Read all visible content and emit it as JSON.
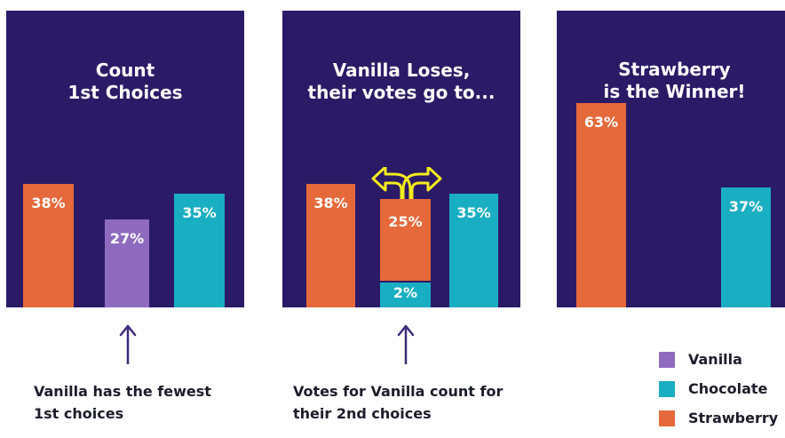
{
  "colors": {
    "background": "#2b1a66",
    "vanilla": "#8e6bbf",
    "chocolate": "#1aaec2",
    "strawberry": "#e5693a",
    "arrow": "#f4ec1d",
    "pointer": "#3d2b7a"
  },
  "chart_data": [
    {
      "type": "bar",
      "title": "Count\n1st Choices",
      "ylim": [
        0,
        70
      ],
      "bars": [
        {
          "series": "Strawberry",
          "value": 38,
          "label": "38%"
        },
        {
          "series": "Vanilla",
          "value": 27,
          "label": "27%"
        },
        {
          "series": "Chocolate",
          "value": 35,
          "label": "35%"
        }
      ]
    },
    {
      "type": "bar",
      "title": "Vanilla Loses,\ntheir votes go to...",
      "ylim": [
        0,
        70
      ],
      "bars": [
        {
          "series": "Strawberry",
          "value": 38,
          "label": "38%"
        },
        {
          "series": "Vanilla",
          "stack": [
            {
              "series": "Chocolate",
              "value": 2,
              "label": "2%"
            },
            {
              "series": "Strawberry",
              "value": 25,
              "label": "25%"
            }
          ]
        },
        {
          "series": "Chocolate",
          "value": 35,
          "label": "35%"
        }
      ]
    },
    {
      "type": "bar",
      "title": "Strawberry\nis the Winner!",
      "ylim": [
        0,
        70
      ],
      "bars": [
        {
          "series": "Strawberry",
          "value": 63,
          "label": "63%"
        },
        {
          "series": "Chocolate",
          "value": 37,
          "label": "37%"
        }
      ]
    }
  ],
  "captions": [
    "Vanilla has the fewest\n1st choices",
    "Votes for Vanilla count for\ntheir 2nd choices"
  ],
  "legend": [
    {
      "name": "Vanilla",
      "color": "#8e6bbf"
    },
    {
      "name": "Chocolate",
      "color": "#1aaec2"
    },
    {
      "name": "Strawberry",
      "color": "#e5693a"
    }
  ]
}
